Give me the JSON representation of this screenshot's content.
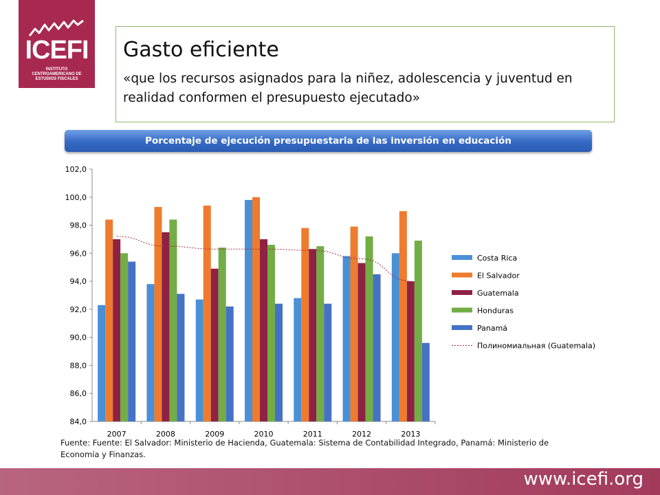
{
  "logo": {
    "name": "ICEFI",
    "subtitle": "INSTITUTO CENTROAMERICANO DE ESTUDIOS FISCALES",
    "color": "#a8294f"
  },
  "header": {
    "title": "Gasto eficiente",
    "subtitle": "«que los recursos asignados para la niñez, adolescencia y juventud en realidad conformen el presupuesto ejecutado»"
  },
  "chart_banner": "Porcentaje de ejecución presupuestaria de las inversión en educación",
  "chart_data": {
    "type": "bar",
    "title": "Porcentaje de ejecución presupuestaria de las inversión en educación",
    "categories": [
      "2007",
      "2008",
      "2009",
      "2010",
      "2011",
      "2012",
      "2013"
    ],
    "ylim": [
      84,
      102
    ],
    "yticks": [
      "84,0",
      "86,0",
      "88,0",
      "90,0",
      "92,0",
      "94,0",
      "96,0",
      "98,0",
      "100,0",
      "102,0"
    ],
    "grid": false,
    "legend_position": "right",
    "series": [
      {
        "name": "Costa Rica",
        "color": "#4a90d6",
        "values": [
          92.3,
          93.8,
          92.7,
          99.8,
          92.8,
          95.8,
          96.0
        ]
      },
      {
        "name": "El Salvador",
        "color": "#ee7b2e",
        "values": [
          98.4,
          99.3,
          99.4,
          100.0,
          97.8,
          97.9,
          99.0
        ]
      },
      {
        "name": "Guatemala",
        "color": "#8e2244",
        "values": [
          97.0,
          97.5,
          94.9,
          97.0,
          96.3,
          95.3,
          94.0
        ]
      },
      {
        "name": "Honduras",
        "color": "#72ad45",
        "values": [
          96.0,
          98.4,
          96.4,
          96.6,
          96.5,
          97.2,
          96.9
        ]
      },
      {
        "name": "Panamá",
        "color": "#4572c4",
        "values": [
          95.4,
          93.1,
          92.2,
          92.4,
          92.4,
          94.5,
          89.6
        ]
      }
    ],
    "trendline": {
      "name": "Полиномиальная (Guatemala)",
      "color": "#a52a3a",
      "values": [
        97.2,
        96.5,
        96.3,
        96.3,
        96.2,
        95.6,
        94.0
      ]
    }
  },
  "source": "Fuente: Fuente: El Salvador: Ministerio de Hacienda, Guatemala: Sistema de Contabilidad Integrado, Panamá: Ministerio de Economía y Finanzas.",
  "footer": {
    "url": "www.icefi.org",
    "color": "#a23a5c"
  }
}
